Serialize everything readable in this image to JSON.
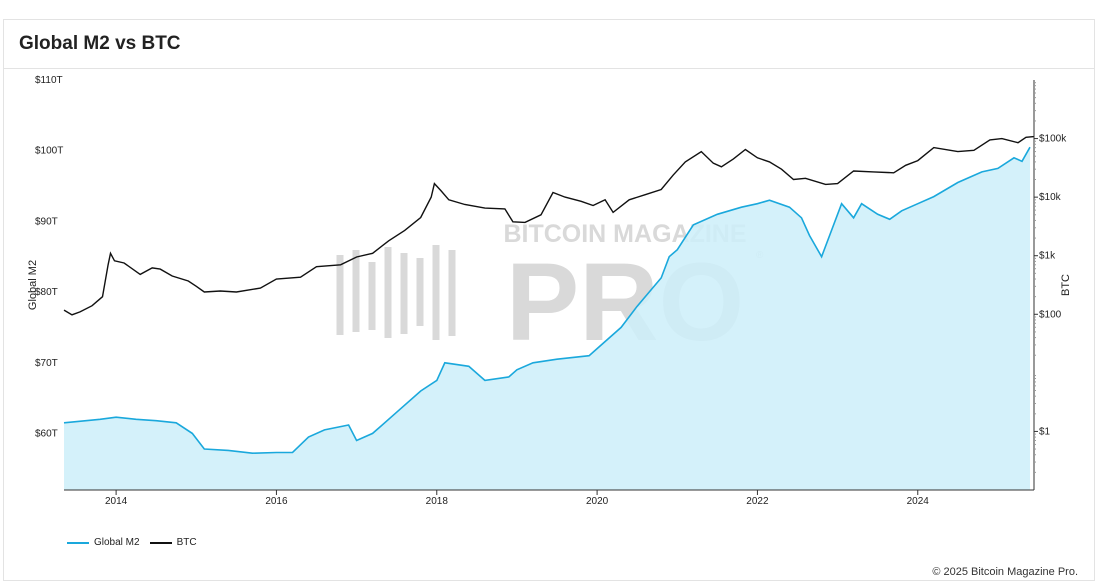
{
  "card": {
    "title": "Global M2 vs BTC"
  },
  "watermark": {
    "line1": "BITCOIN MAGAZINE",
    "line2": "PRO",
    "mark": "®"
  },
  "copyright": "© 2025 Bitcoin Magazine Pro.",
  "colors": {
    "m2_line": "#1aa8dc",
    "m2_fill": "#cdeef9",
    "btc": "#111111",
    "watermark": "#d9d9d9"
  },
  "chart_data": {
    "type": "line",
    "ylabel_left": "Global M2",
    "ylabel_right": "BTC",
    "x_ticks": [
      "2014",
      "2016",
      "2018",
      "2020",
      "2022",
      "2024"
    ],
    "x_range": [
      2013.35,
      2025.45
    ],
    "y_left_range": [
      52,
      110
    ],
    "y_left_ticks": [
      "$110T",
      "$100T",
      "$90T",
      "$80T",
      "$70T",
      "$60T"
    ],
    "y_right_scale": "log",
    "y_right_range": [
      0.1,
      1000000
    ],
    "y_right_ticks": [
      "$100k",
      "$10k",
      "$1k",
      "$100",
      "$1"
    ],
    "series": [
      {
        "name": "Global M2",
        "axis": "left",
        "style": "area",
        "points": [
          [
            2013.35,
            61.5
          ],
          [
            2013.8,
            62.0
          ],
          [
            2014.0,
            62.3
          ],
          [
            2014.25,
            62.0
          ],
          [
            2014.5,
            61.8
          ],
          [
            2014.75,
            61.5
          ],
          [
            2014.95,
            60.0
          ],
          [
            2015.1,
            57.8
          ],
          [
            2015.4,
            57.6
          ],
          [
            2015.7,
            57.2
          ],
          [
            2016.0,
            57.3
          ],
          [
            2016.2,
            57.3
          ],
          [
            2016.4,
            59.5
          ],
          [
            2016.6,
            60.5
          ],
          [
            2016.9,
            61.2
          ],
          [
            2017.0,
            59.0
          ],
          [
            2017.2,
            60.0
          ],
          [
            2017.5,
            63.0
          ],
          [
            2017.8,
            66.0
          ],
          [
            2018.0,
            67.5
          ],
          [
            2018.1,
            70.0
          ],
          [
            2018.4,
            69.5
          ],
          [
            2018.6,
            67.5
          ],
          [
            2018.9,
            68.0
          ],
          [
            2019.0,
            69.0
          ],
          [
            2019.2,
            70.0
          ],
          [
            2019.5,
            70.5
          ],
          [
            2019.9,
            71.0
          ],
          [
            2020.0,
            72.0
          ],
          [
            2020.3,
            75.0
          ],
          [
            2020.5,
            78.0
          ],
          [
            2020.8,
            82.0
          ],
          [
            2020.9,
            85.0
          ],
          [
            2021.0,
            86.0
          ],
          [
            2021.2,
            89.5
          ],
          [
            2021.5,
            91.0
          ],
          [
            2021.8,
            92.0
          ],
          [
            2022.0,
            92.5
          ],
          [
            2022.15,
            93.0
          ],
          [
            2022.4,
            92.0
          ],
          [
            2022.55,
            90.5
          ],
          [
            2022.65,
            88.0
          ],
          [
            2022.8,
            85.0
          ],
          [
            2022.9,
            88.0
          ],
          [
            2023.05,
            92.5
          ],
          [
            2023.2,
            90.5
          ],
          [
            2023.3,
            92.5
          ],
          [
            2023.5,
            91.0
          ],
          [
            2023.65,
            90.3
          ],
          [
            2023.8,
            91.5
          ],
          [
            2024.0,
            92.5
          ],
          [
            2024.2,
            93.5
          ],
          [
            2024.5,
            95.5
          ],
          [
            2024.8,
            97.0
          ],
          [
            2025.0,
            97.5
          ],
          [
            2025.2,
            99.0
          ],
          [
            2025.3,
            98.5
          ],
          [
            2025.4,
            100.5
          ]
        ]
      },
      {
        "name": "BTC",
        "axis": "right",
        "style": "line",
        "points": [
          [
            2013.35,
            118
          ],
          [
            2013.45,
            98
          ],
          [
            2013.55,
            110
          ],
          [
            2013.7,
            140
          ],
          [
            2013.83,
            200
          ],
          [
            2013.9,
            700
          ],
          [
            2013.93,
            1100
          ],
          [
            2013.98,
            820
          ],
          [
            2014.1,
            750
          ],
          [
            2014.3,
            480
          ],
          [
            2014.45,
            620
          ],
          [
            2014.55,
            590
          ],
          [
            2014.7,
            450
          ],
          [
            2014.9,
            370
          ],
          [
            2015.0,
            300
          ],
          [
            2015.1,
            240
          ],
          [
            2015.3,
            250
          ],
          [
            2015.5,
            240
          ],
          [
            2015.8,
            280
          ],
          [
            2016.0,
            400
          ],
          [
            2016.3,
            430
          ],
          [
            2016.5,
            650
          ],
          [
            2016.8,
            700
          ],
          [
            2017.0,
            950
          ],
          [
            2017.2,
            1100
          ],
          [
            2017.4,
            1800
          ],
          [
            2017.6,
            2700
          ],
          [
            2017.8,
            4500
          ],
          [
            2017.93,
            10000
          ],
          [
            2017.97,
            17000
          ],
          [
            2018.05,
            13000
          ],
          [
            2018.15,
            9000
          ],
          [
            2018.35,
            7500
          ],
          [
            2018.6,
            6500
          ],
          [
            2018.85,
            6300
          ],
          [
            2018.95,
            3800
          ],
          [
            2019.1,
            3700
          ],
          [
            2019.3,
            5000
          ],
          [
            2019.45,
            12000
          ],
          [
            2019.6,
            10000
          ],
          [
            2019.8,
            8500
          ],
          [
            2019.95,
            7200
          ],
          [
            2020.1,
            9000
          ],
          [
            2020.2,
            5500
          ],
          [
            2020.4,
            9000
          ],
          [
            2020.6,
            11000
          ],
          [
            2020.8,
            13500
          ],
          [
            2020.95,
            24000
          ],
          [
            2021.1,
            40000
          ],
          [
            2021.3,
            60000
          ],
          [
            2021.45,
            38000
          ],
          [
            2021.55,
            33000
          ],
          [
            2021.7,
            45000
          ],
          [
            2021.85,
            65000
          ],
          [
            2022.0,
            47000
          ],
          [
            2022.15,
            40000
          ],
          [
            2022.3,
            30000
          ],
          [
            2022.45,
            20000
          ],
          [
            2022.6,
            21000
          ],
          [
            2022.85,
            16500
          ],
          [
            2023.0,
            17000
          ],
          [
            2023.2,
            28000
          ],
          [
            2023.45,
            27000
          ],
          [
            2023.7,
            26000
          ],
          [
            2023.85,
            35000
          ],
          [
            2024.0,
            42000
          ],
          [
            2024.2,
            70000
          ],
          [
            2024.5,
            60000
          ],
          [
            2024.7,
            63000
          ],
          [
            2024.9,
            95000
          ],
          [
            2025.05,
            100000
          ],
          [
            2025.25,
            85000
          ],
          [
            2025.35,
            105000
          ],
          [
            2025.45,
            108000
          ]
        ]
      }
    ],
    "legend": [
      "Global M2",
      "BTC"
    ],
    "legend_position": "bottom-left",
    "grid": false
  }
}
